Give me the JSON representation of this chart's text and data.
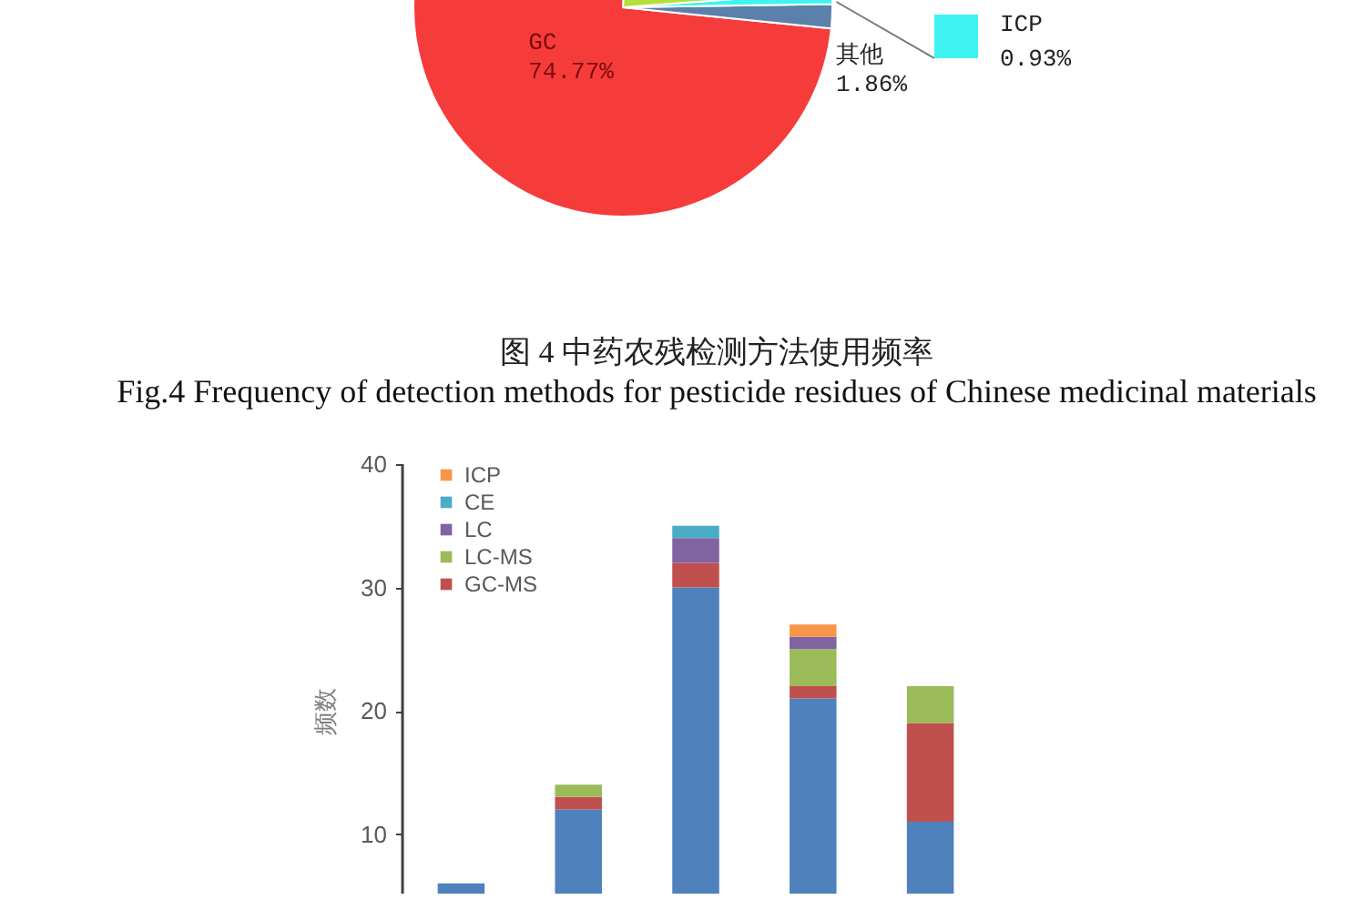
{
  "chart_data": [
    {
      "type": "pie",
      "title": "图 4 中药农残检测方法使用频率",
      "subtitle": "Fig.4 Frequency of detection methods for pesticide residues of Chinese medicinal materials",
      "categories": [
        "GC",
        "其他",
        "ICP",
        null
      ],
      "values": [
        74.77,
        1.86,
        0.93,
        22.44
      ],
      "colors": [
        "#f63b3b",
        "#5b80aa",
        "#3ff3f3",
        "#b3e03a"
      ],
      "value_labels": [
        "74.77%",
        "1.86%",
        "0.93%",
        null
      ]
    },
    {
      "type": "bar",
      "stacked": true,
      "ylabel": "频数",
      "categories": [
        null,
        null,
        null,
        null,
        null
      ],
      "series": [
        {
          "color": "#4f81bd",
          "values": [
            6,
            12,
            30,
            21,
            11
          ]
        },
        {
          "name": "GC-MS",
          "color": "#c0504d",
          "values": [
            0,
            1,
            2,
            1,
            8
          ]
        },
        {
          "name": "LC-MS",
          "color": "#9bbb59",
          "values": [
            0,
            1,
            0,
            3,
            3
          ]
        },
        {
          "name": "LC",
          "color": "#8064a2",
          "values": [
            0,
            0,
            2,
            1,
            0
          ]
        },
        {
          "name": "CE",
          "color": "#4bacc6",
          "values": [
            0,
            0,
            1,
            0,
            0
          ]
        },
        {
          "name": "ICP",
          "color": "#f79646",
          "values": [
            0,
            0,
            0,
            1,
            0
          ]
        }
      ],
      "ylim": [
        0,
        40
      ],
      "yticks": [
        10,
        20,
        30,
        40
      ],
      "legend": "top left"
    }
  ]
}
